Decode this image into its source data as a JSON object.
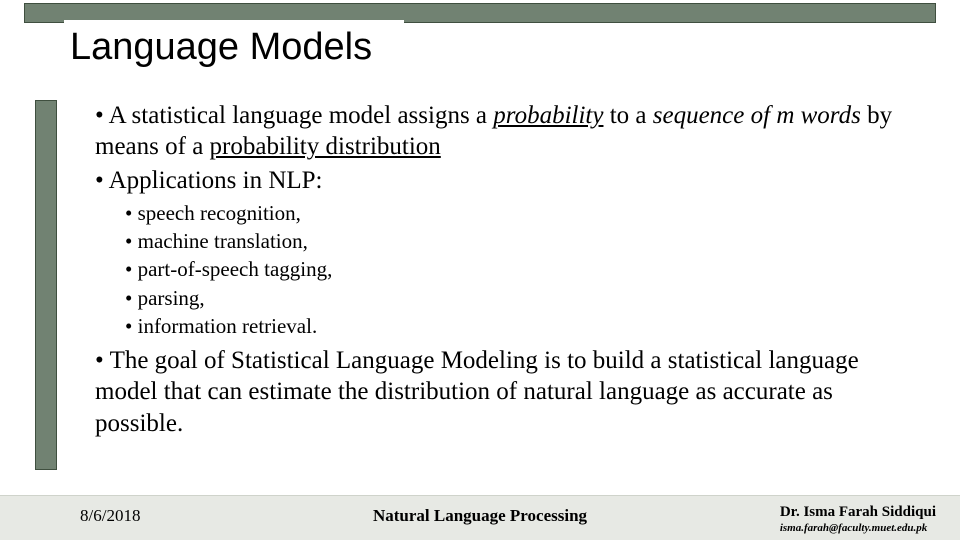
{
  "colors": {
    "bar_fill": "#718272",
    "bar_border": "#3f4f3f",
    "footer_bg": "#e7e9e4",
    "text": "#000000",
    "page_bg": "#ffffff"
  },
  "title": "Language Models",
  "bullets": {
    "b1_part1": "A statistical language model assigns a ",
    "b1_probability": "probability",
    "b1_part2": " to a ",
    "b1_sequence": "sequence of m words",
    "b1_part3": " by means of a ",
    "b1_probdist": "probability distribution",
    "b2": "Applications in NLP:",
    "sub": [
      "speech recognition,",
      "machine translation,",
      "part-of-speech tagging,",
      "parsing,",
      "information retrieval."
    ],
    "b3": "The goal of Statistical Language Modeling is to build a statistical language model that can estimate the distribution of natural language as accurate as possible."
  },
  "footer": {
    "date": "8/6/2018",
    "center": "Natural Language Processing",
    "author": "Dr. Isma Farah Siddiqui",
    "email": "isma.farah@faculty.muet.edu.pk"
  }
}
